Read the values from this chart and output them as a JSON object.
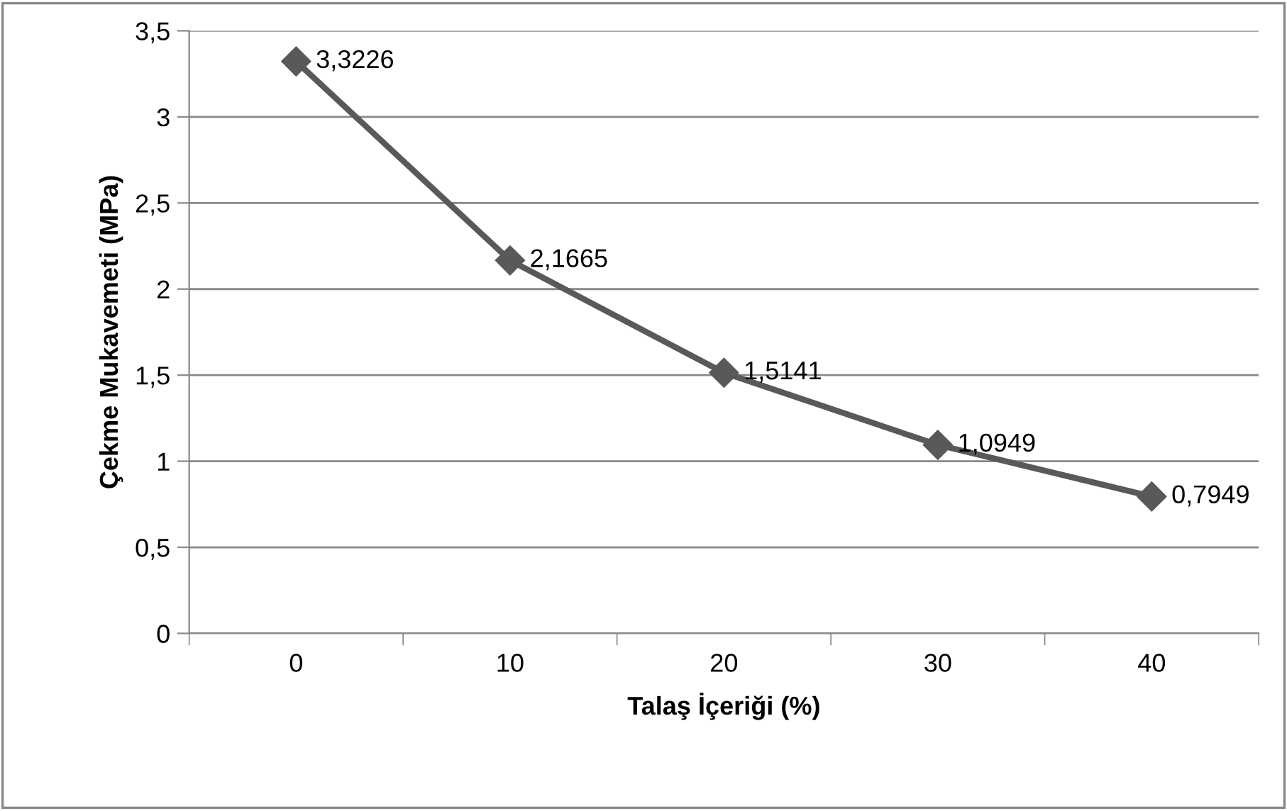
{
  "chart_data": {
    "type": "line",
    "xlabel": "Talaş İçeriği (%)",
    "ylabel": "Çekme Mukavemeti (MPa)",
    "categories": [
      "0",
      "10",
      "20",
      "30",
      "40"
    ],
    "series": [
      {
        "color": "#595959",
        "values": [
          3.3226,
          2.1665,
          1.5141,
          1.0949,
          0.7949
        ],
        "value_labels": [
          "3,3226",
          "2,1665",
          "1,5141",
          "1,0949",
          "0,7949"
        ]
      }
    ],
    "ylim": [
      0,
      3.5
    ],
    "yticks": [
      0,
      {
        "value": 0.5,
        "label": "0,5"
      },
      1,
      {
        "value": 1.5,
        "label": "1,5"
      },
      2,
      {
        "value": 2.5,
        "label": "2,5"
      },
      3,
      {
        "value": 3.5,
        "label": "3,5"
      }
    ],
    "grid": "y",
    "marker": "diamond",
    "line_style": "solid"
  }
}
